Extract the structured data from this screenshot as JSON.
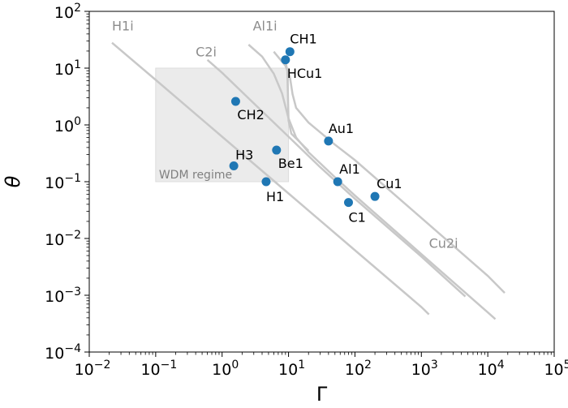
{
  "chart_data": {
    "type": "scatter",
    "xlabel": "Γ",
    "ylabel": "θ",
    "x_scale": "log",
    "y_scale": "log",
    "xlim": [
      0.01,
      100000
    ],
    "ylim": [
      0.0001,
      100
    ],
    "grid": false,
    "x_ticks": [
      {
        "base": "10",
        "exp": "−2",
        "value": 0.01
      },
      {
        "base": "10",
        "exp": "−1",
        "value": 0.1
      },
      {
        "base": "10",
        "exp": "0",
        "value": 1
      },
      {
        "base": "10",
        "exp": "1",
        "value": 10
      },
      {
        "base": "10",
        "exp": "2",
        "value": 100
      },
      {
        "base": "10",
        "exp": "3",
        "value": 1000
      },
      {
        "base": "10",
        "exp": "4",
        "value": 10000
      },
      {
        "base": "10",
        "exp": "5",
        "value": 100000
      }
    ],
    "y_ticks": [
      {
        "base": "10",
        "exp": "−4",
        "value": 0.0001
      },
      {
        "base": "10",
        "exp": "−3",
        "value": 0.001
      },
      {
        "base": "10",
        "exp": "−2",
        "value": 0.01
      },
      {
        "base": "10",
        "exp": "−1",
        "value": 0.1
      },
      {
        "base": "10",
        "exp": "0",
        "value": 1
      },
      {
        "base": "10",
        "exp": "1",
        "value": 10
      },
      {
        "base": "10",
        "exp": "2",
        "value": 100
      }
    ],
    "region": {
      "label": "WDM regime",
      "x_range": [
        0.1,
        10
      ],
      "y_range": [
        0.1,
        10
      ],
      "color": "#ebebeb"
    },
    "points": [
      {
        "label": "CH1",
        "x": 10.5,
        "y": 19.5
      },
      {
        "label": "HCu1",
        "x": 9.0,
        "y": 14.0
      },
      {
        "label": "CH2",
        "x": 1.6,
        "y": 2.6
      },
      {
        "label": "Au1",
        "x": 40,
        "y": 0.52
      },
      {
        "label": "Be1",
        "x": 6.6,
        "y": 0.36
      },
      {
        "label": "H3",
        "x": 1.5,
        "y": 0.19
      },
      {
        "label": "H1",
        "x": 4.6,
        "y": 0.1
      },
      {
        "label": "Al1",
        "x": 55,
        "y": 0.1
      },
      {
        "label": "Cu1",
        "x": 200,
        "y": 0.055
      },
      {
        "label": "C1",
        "x": 80,
        "y": 0.043
      }
    ],
    "point_color": "#1f77b4",
    "curves": [
      {
        "name": "H1i",
        "points": [
          [
            0.022,
            28
          ],
          [
            0.1,
            6.2
          ],
          [
            1,
            0.62
          ],
          [
            10,
            0.062
          ],
          [
            100,
            0.0062
          ],
          [
            1000,
            0.00062
          ],
          [
            1300,
            0.00046
          ]
        ]
      },
      {
        "name": "C2i",
        "points": [
          [
            0.6,
            14
          ],
          [
            1,
            8.3
          ],
          [
            3,
            2.4
          ],
          [
            10,
            0.62
          ],
          [
            30,
            0.18
          ],
          [
            100,
            0.05
          ],
          [
            1000,
            0.0048
          ],
          [
            4600,
            0.00095
          ]
        ]
      },
      {
        "name": "Al1i",
        "points": [
          [
            2.5,
            26
          ],
          [
            4,
            16
          ],
          [
            6,
            8
          ],
          [
            8,
            3.6
          ],
          [
            10,
            1.3
          ],
          [
            13,
            0.6
          ],
          [
            20,
            0.33
          ],
          [
            50,
            0.12
          ],
          [
            100,
            0.057
          ],
          [
            1000,
            0.0053
          ],
          [
            10000,
            0.0005
          ],
          [
            13000,
            0.00038
          ]
        ]
      },
      {
        "name": "Cu2i",
        "points": [
          [
            6,
            19.5
          ],
          [
            9,
            11
          ],
          [
            10.5,
            7
          ],
          [
            11.5,
            3.5
          ],
          [
            13,
            2.0
          ],
          [
            20,
            1.1
          ],
          [
            50,
            0.45
          ],
          [
            100,
            0.24
          ],
          [
            1000,
            0.023
          ],
          [
            10000,
            0.0022
          ],
          [
            18000,
            0.0011
          ]
        ]
      },
      {
        "name": "HCu1",
        "points": [
          [
            8.8,
            15
          ],
          [
            9.6,
            9
          ],
          [
            10,
            1.2
          ],
          [
            11,
            0.7
          ],
          [
            20,
            0.35
          ]
        ]
      }
    ],
    "curve_color": "#c8c8c8",
    "curve_labels": [
      {
        "name": "H1i",
        "x": 0.022,
        "y": 46
      },
      {
        "name": "C2i",
        "x": 0.4,
        "y": 16
      },
      {
        "name": "Al1i",
        "x": 2.9,
        "y": 46
      },
      {
        "name": "Cu2i",
        "x": 1300,
        "y": 0.0068
      }
    ]
  }
}
